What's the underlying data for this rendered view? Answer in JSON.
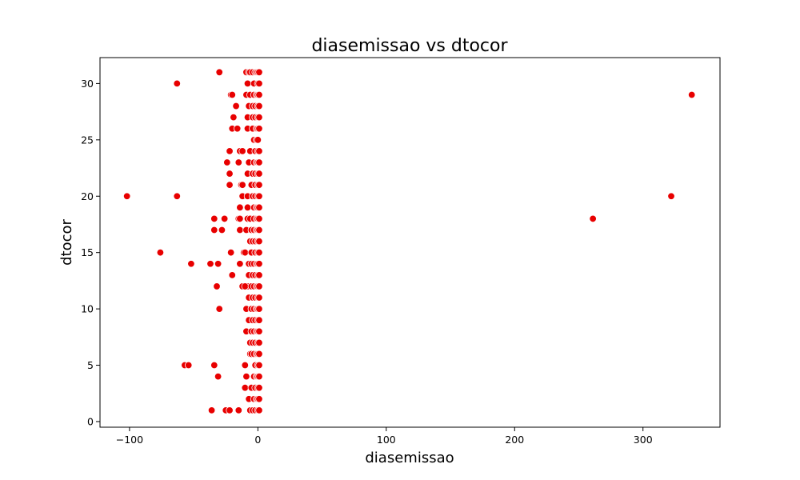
{
  "chart_data": {
    "type": "scatter",
    "title": "diasemissao vs dtocor",
    "xlabel": "diasemissao",
    "ylabel": "dtocor",
    "xlim": [
      -123,
      360
    ],
    "ylim": [
      -0.5,
      32.3
    ],
    "xticks": [
      -100,
      0,
      100,
      200,
      300
    ],
    "yticks": [
      0,
      5,
      10,
      15,
      20,
      25,
      30
    ],
    "grid": false,
    "legend": "none",
    "marker_color": "#e80000",
    "marker_edge": "#ffffff",
    "series": [
      {
        "points": [
          [
            -102,
            20
          ],
          [
            -63,
            30
          ],
          [
            -63,
            20
          ],
          [
            -76,
            15
          ],
          [
            -52,
            14
          ],
          [
            -57,
            5
          ],
          [
            -54,
            5
          ],
          [
            -30,
            31
          ],
          [
            -21,
            29
          ],
          [
            -20,
            29
          ],
          [
            -17,
            28
          ],
          [
            -19,
            27
          ],
          [
            -20,
            26
          ],
          [
            -16,
            26
          ],
          [
            -22,
            24
          ],
          [
            -14,
            24
          ],
          [
            -12,
            24
          ],
          [
            -24,
            23
          ],
          [
            -15,
            23
          ],
          [
            -22,
            22
          ],
          [
            -22,
            21
          ],
          [
            -13,
            21
          ],
          [
            -12,
            21
          ],
          [
            -12,
            20
          ],
          [
            -14,
            19
          ],
          [
            -15,
            18
          ],
          [
            -14,
            18
          ],
          [
            -34,
            18
          ],
          [
            -26,
            18
          ],
          [
            -34,
            17
          ],
          [
            -28,
            17
          ],
          [
            -14,
            17
          ],
          [
            -9,
            17
          ],
          [
            -21,
            15
          ],
          [
            -11,
            15
          ],
          [
            -37,
            14
          ],
          [
            -31,
            14
          ],
          [
            -14,
            14
          ],
          [
            -20,
            13
          ],
          [
            -32,
            12
          ],
          [
            -12,
            12
          ],
          [
            -30,
            10
          ],
          [
            -34,
            5
          ],
          [
            -31,
            4
          ],
          [
            -36,
            1
          ],
          [
            -25,
            1
          ],
          [
            -22,
            1
          ],
          [
            -15,
            1
          ],
          [
            -10,
            3
          ],
          [
            -10,
            5
          ],
          [
            -9,
            4
          ],
          [
            -8,
            12
          ],
          [
            -10,
            12
          ],
          [
            -9,
            10
          ],
          [
            -9,
            8
          ],
          [
            -10,
            15
          ],
          [
            -8,
            18
          ],
          [
            -9,
            31
          ],
          [
            -7,
            31
          ],
          [
            -9,
            29
          ],
          [
            -8,
            30
          ],
          [
            -7,
            28
          ],
          [
            -8,
            27
          ],
          [
            -8,
            26
          ],
          [
            -8,
            22
          ],
          [
            -8,
            20
          ],
          [
            -7,
            23
          ],
          [
            -8,
            19
          ],
          [
            -6,
            16
          ],
          [
            -7,
            14
          ],
          [
            -7,
            13
          ],
          [
            -7,
            11
          ],
          [
            -7,
            9
          ],
          [
            -6,
            7
          ],
          [
            -6,
            6
          ],
          [
            -7,
            2
          ],
          [
            -6,
            31
          ],
          [
            -6,
            29
          ],
          [
            -6,
            24
          ],
          [
            -5,
            21
          ],
          [
            -6,
            18
          ],
          [
            -5,
            17
          ],
          [
            -5,
            15
          ],
          [
            -5,
            14
          ],
          [
            -5,
            12
          ],
          [
            -5,
            10
          ],
          [
            -5,
            8
          ],
          [
            -5,
            6
          ],
          [
            -5,
            3
          ],
          [
            -6,
            1
          ],
          [
            -4,
            31
          ],
          [
            -4,
            28
          ],
          [
            -4,
            27
          ],
          [
            -4,
            26
          ],
          [
            -4,
            22
          ],
          [
            -4,
            20
          ],
          [
            -4,
            16
          ],
          [
            -4,
            13
          ],
          [
            -4,
            11
          ],
          [
            -4,
            9
          ],
          [
            -4,
            7
          ],
          [
            -4,
            1
          ],
          [
            -3,
            30
          ],
          [
            -3,
            29
          ],
          [
            -3,
            25
          ],
          [
            -3,
            23
          ],
          [
            -3,
            19
          ],
          [
            -3,
            18
          ],
          [
            -3,
            17
          ],
          [
            -3,
            14
          ],
          [
            -3,
            12
          ],
          [
            -3,
            10
          ],
          [
            -3,
            8
          ],
          [
            -3,
            6
          ],
          [
            -3,
            4
          ],
          [
            -3,
            2
          ],
          [
            -2,
            31
          ],
          [
            -2,
            28
          ],
          [
            -2,
            27
          ],
          [
            -2,
            24
          ],
          [
            -2,
            22
          ],
          [
            -2,
            21
          ],
          [
            -2,
            20
          ],
          [
            -2,
            16
          ],
          [
            -2,
            15
          ],
          [
            -2,
            13
          ],
          [
            -2,
            11
          ],
          [
            -2,
            9
          ],
          [
            -2,
            7
          ],
          [
            -2,
            5
          ],
          [
            -2,
            3
          ],
          [
            -2,
            1
          ],
          [
            -1,
            31
          ],
          [
            -1,
            29
          ],
          [
            -1,
            26
          ],
          [
            -1,
            25
          ],
          [
            -1,
            23
          ],
          [
            -1,
            19
          ],
          [
            -1,
            18
          ],
          [
            -1,
            17
          ],
          [
            -1,
            14
          ],
          [
            -1,
            12
          ],
          [
            -1,
            10
          ],
          [
            -1,
            8
          ],
          [
            -1,
            6
          ],
          [
            -1,
            4
          ],
          [
            -1,
            2
          ],
          [
            0,
            31
          ],
          [
            0,
            30
          ],
          [
            0,
            29
          ],
          [
            0,
            28
          ],
          [
            0,
            27
          ],
          [
            0,
            26
          ],
          [
            0,
            25
          ],
          [
            0,
            24
          ],
          [
            0,
            23
          ],
          [
            0,
            22
          ],
          [
            0,
            21
          ],
          [
            0,
            20
          ],
          [
            0,
            19
          ],
          [
            0,
            18
          ],
          [
            0,
            17
          ],
          [
            0,
            16
          ],
          [
            0,
            15
          ],
          [
            0,
            14
          ],
          [
            0,
            13
          ],
          [
            0,
            12
          ],
          [
            0,
            11
          ],
          [
            0,
            10
          ],
          [
            0,
            9
          ],
          [
            0,
            8
          ],
          [
            0,
            7
          ],
          [
            0,
            6
          ],
          [
            0,
            5
          ],
          [
            0,
            4
          ],
          [
            0,
            3
          ],
          [
            0,
            2
          ],
          [
            0,
            1
          ],
          [
            1,
            31
          ],
          [
            1,
            30
          ],
          [
            1,
            29
          ],
          [
            1,
            28
          ],
          [
            1,
            27
          ],
          [
            1,
            26
          ],
          [
            1,
            24
          ],
          [
            1,
            23
          ],
          [
            1,
            22
          ],
          [
            1,
            21
          ],
          [
            1,
            20
          ],
          [
            1,
            19
          ],
          [
            1,
            18
          ],
          [
            1,
            17
          ],
          [
            1,
            16
          ],
          [
            1,
            15
          ],
          [
            1,
            14
          ],
          [
            1,
            13
          ],
          [
            1,
            12
          ],
          [
            1,
            11
          ],
          [
            1,
            10
          ],
          [
            1,
            9
          ],
          [
            1,
            8
          ],
          [
            1,
            7
          ],
          [
            1,
            6
          ],
          [
            1,
            5
          ],
          [
            1,
            4
          ],
          [
            1,
            3
          ],
          [
            1,
            2
          ],
          [
            1,
            1
          ],
          [
            261,
            18
          ],
          [
            322,
            20
          ],
          [
            338,
            29
          ]
        ]
      }
    ]
  }
}
